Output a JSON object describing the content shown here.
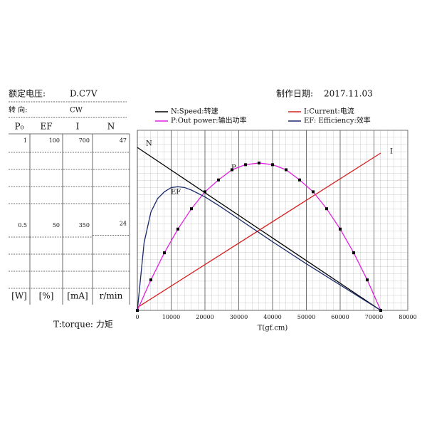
{
  "chart_data": {
    "type": "line",
    "rated_voltage_label": "额定电压:",
    "rated_voltage": "D.C7V",
    "date_label": "制作日期:",
    "date": "2017.11.03",
    "direction_label": "转 向:",
    "direction": "CW",
    "torque_note": "T:torque: 力矩",
    "xlabel": "T(gf.cm)",
    "xlim": [
      0,
      80000
    ],
    "xticks": [
      0,
      10000,
      20000,
      30000,
      40000,
      50000,
      60000,
      70000,
      80000
    ],
    "axes": [
      {
        "name": "P₀",
        "unit": "[W]",
        "ylim": [
          0,
          1
        ],
        "yticks": [
          1,
          0.5
        ]
      },
      {
        "name": "EF",
        "unit": "[%]",
        "ylim": [
          0,
          100
        ],
        "yticks": [
          100,
          50
        ]
      },
      {
        "name": "I",
        "unit": "[mA]",
        "ylim": [
          0,
          700
        ],
        "yticks": [
          700,
          350
        ]
      },
      {
        "name": "N",
        "unit": "r/min",
        "ylim": [
          0,
          47
        ],
        "yticks": [
          47,
          24
        ]
      }
    ],
    "series": [
      {
        "name": "N:Speed:转速",
        "label": "N",
        "color": "#000000",
        "axis": 3,
        "x": [
          0,
          72000
        ],
        "values": [
          45.2,
          0
        ]
      },
      {
        "name": "I:Current:电流",
        "label": "I",
        "color": "#d42020",
        "axis": 2,
        "x": [
          0,
          72000
        ],
        "values": [
          12,
          650
        ]
      },
      {
        "name": "P:Out power:输出功率",
        "label": "P",
        "color": "#e020e0",
        "axis": 0,
        "markers": true,
        "x": [
          0,
          4000,
          8000,
          12000,
          16000,
          20000,
          24000,
          28000,
          32000,
          36000,
          40000,
          44000,
          48000,
          52000,
          56000,
          60000,
          64000,
          68000,
          72000
        ],
        "values": [
          0,
          0.18,
          0.34,
          0.48,
          0.6,
          0.7,
          0.77,
          0.83,
          0.86,
          0.87,
          0.86,
          0.83,
          0.77,
          0.7,
          0.6,
          0.48,
          0.34,
          0.18,
          0
        ]
      },
      {
        "name": "EF: Efficiency:效率",
        "label": "EF",
        "color": "#1a2a6a",
        "axis": 1,
        "x": [
          0,
          2000,
          4000,
          6000,
          8000,
          10000,
          12000,
          14000,
          16000,
          20000,
          24000,
          30000,
          40000,
          50000,
          60000,
          72000
        ],
        "values": [
          0,
          40,
          58,
          66,
          70,
          72.5,
          73,
          72.5,
          71,
          67,
          62,
          54,
          40.5,
          27.5,
          15,
          0
        ]
      }
    ]
  }
}
